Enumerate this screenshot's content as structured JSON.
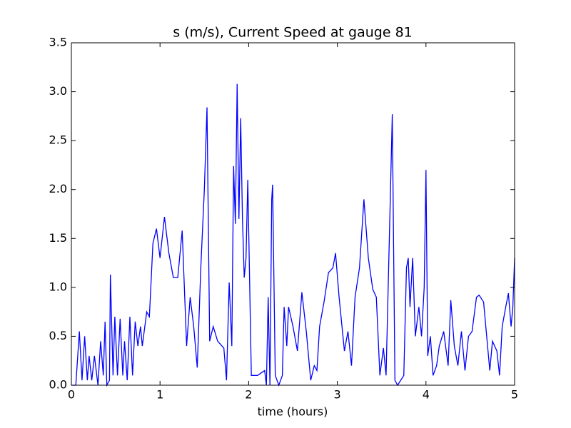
{
  "chart_data": {
    "type": "line",
    "title": "s (m/s), Current Speed at gauge 81",
    "xlabel": "time (hours)",
    "x": [
      0,
      0.05,
      0.09,
      0.12,
      0.15,
      0.18,
      0.2,
      0.23,
      0.26,
      0.3,
      0.33,
      0.36,
      0.38,
      0.4,
      0.43,
      0.44,
      0.47,
      0.49,
      0.52,
      0.55,
      0.58,
      0.6,
      0.63,
      0.66,
      0.69,
      0.72,
      0.75,
      0.78,
      0.8,
      0.85,
      0.88,
      0.92,
      0.96,
      1.0,
      1.05,
      1.1,
      1.15,
      1.2,
      1.25,
      1.3,
      1.34,
      1.38,
      1.42,
      1.46,
      1.5,
      1.53,
      1.56,
      1.6,
      1.65,
      1.72,
      1.75,
      1.78,
      1.81,
      1.83,
      1.85,
      1.87,
      1.89,
      1.91,
      1.93,
      1.95,
      1.97,
      1.99,
      2.03,
      2.1,
      2.18,
      2.2,
      2.22,
      2.24,
      2.26,
      2.27,
      2.3,
      2.34,
      2.38,
      2.4,
      2.43,
      2.45,
      2.5,
      2.55,
      2.6,
      2.65,
      2.7,
      2.74,
      2.77,
      2.8,
      2.85,
      2.9,
      2.95,
      2.98,
      3.02,
      3.08,
      3.12,
      3.16,
      3.2,
      3.25,
      3.3,
      3.35,
      3.4,
      3.44,
      3.48,
      3.52,
      3.55,
      3.6,
      3.62,
      3.65,
      3.68,
      3.75,
      3.78,
      3.8,
      3.82,
      3.85,
      3.88,
      3.92,
      3.95,
      3.98,
      4.0,
      4.02,
      4.05,
      4.08,
      4.12,
      4.15,
      4.2,
      4.25,
      4.28,
      4.32,
      4.36,
      4.4,
      4.44,
      4.48,
      4.52,
      4.57,
      4.6,
      4.65,
      4.72,
      4.75,
      4.8,
      4.83,
      4.86,
      4.9,
      4.93,
      4.96,
      4.98,
      5.0
    ],
    "series": [
      {
        "color": "#0000ff",
        "values": [
          0,
          0,
          0.55,
          0.05,
          0.5,
          0.05,
          0.3,
          0.05,
          0.3,
          0,
          0.45,
          0.1,
          0.65,
          0,
          0.05,
          1.13,
          0.1,
          0.7,
          0.1,
          0.68,
          0.1,
          0.45,
          0.05,
          0.7,
          0.1,
          0.65,
          0.4,
          0.6,
          0.4,
          0.75,
          0.7,
          1.45,
          1.6,
          1.3,
          1.72,
          1.35,
          1.1,
          1.1,
          1.58,
          0.4,
          0.9,
          0.6,
          0.18,
          1.2,
          2.0,
          2.84,
          0.45,
          0.6,
          0.45,
          0.38,
          0.05,
          1.05,
          0.4,
          2.24,
          1.65,
          3.08,
          1.7,
          2.73,
          1.7,
          1.1,
          1.3,
          2.1,
          0.1,
          0.1,
          0.15,
          0,
          0.9,
          0,
          1.9,
          2.05,
          0.1,
          0,
          0.1,
          0.8,
          0.4,
          0.8,
          0.6,
          0.35,
          0.95,
          0.55,
          0.05,
          0.2,
          0.15,
          0.6,
          0.85,
          1.15,
          1.2,
          1.35,
          0.9,
          0.35,
          0.55,
          0.2,
          0.9,
          1.2,
          1.9,
          1.3,
          0.98,
          0.9,
          0.1,
          0.38,
          0.1,
          2.0,
          2.77,
          0.05,
          0,
          0.1,
          1.2,
          1.3,
          0.8,
          1.3,
          0.5,
          0.8,
          0.5,
          1.0,
          2.2,
          0.3,
          0.5,
          0.1,
          0.2,
          0.4,
          0.55,
          0.2,
          0.87,
          0.4,
          0.2,
          0.55,
          0.15,
          0.5,
          0.55,
          0.9,
          0.92,
          0.85,
          0.15,
          0.45,
          0.35,
          0.1,
          0.6,
          0.8,
          0.94,
          0.6,
          0.8,
          1.3
        ]
      }
    ],
    "xlim": [
      0,
      5
    ],
    "xticks": [
      0,
      1,
      2,
      3,
      4,
      5
    ],
    "ylim": [
      0,
      3.5
    ],
    "yticks": [
      {
        "value": 0,
        "label": "0.0"
      },
      0.5,
      {
        "value": 1,
        "label": "1.0"
      },
      1.5,
      {
        "value": 2,
        "label": "2.0"
      },
      2.5,
      {
        "value": 3,
        "label": "3.0"
      },
      3.5
    ]
  }
}
